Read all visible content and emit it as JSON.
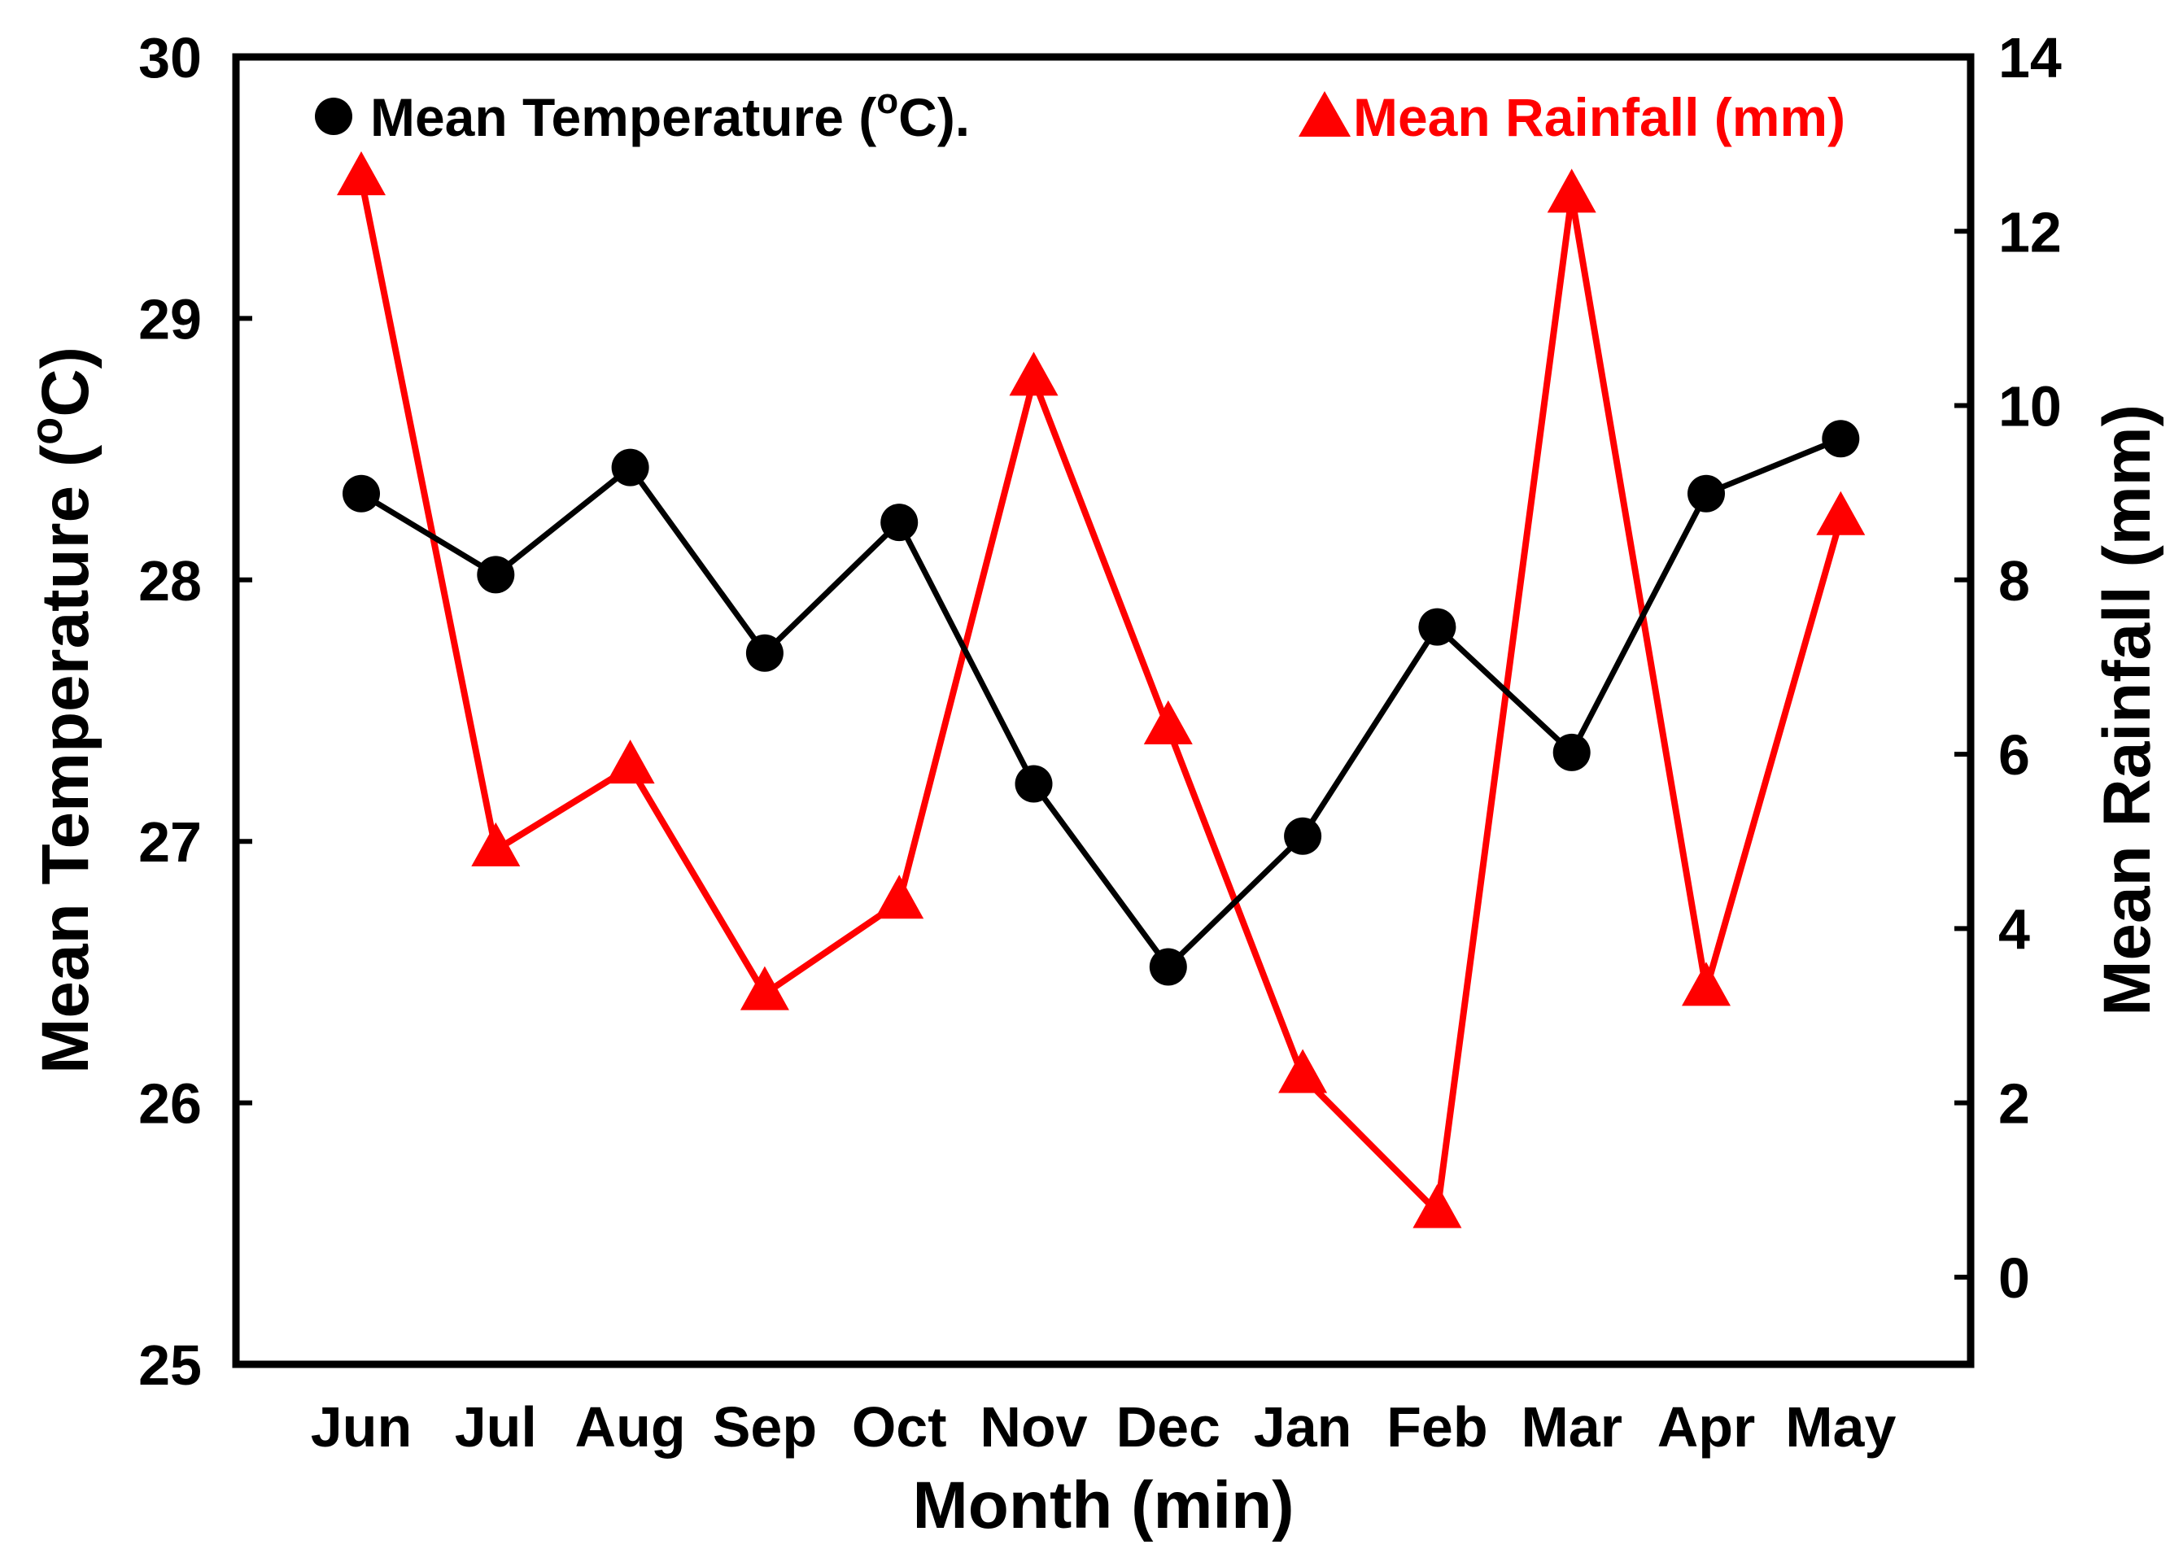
{
  "chart_data": {
    "type": "line",
    "title": "",
    "xlabel": "Month (min)",
    "ylabel": "Mean Temperature (°C)",
    "ylabel_right": "Mean Rainfall (mm)",
    "ylabel_parts": [
      "Mean Temperature (",
      "o",
      "C)"
    ],
    "categories": [
      "Jun",
      "Jul",
      "Aug",
      "Sep",
      "Oct",
      "Nov",
      "Dec",
      "Jan",
      "Feb",
      "Mar",
      "Apr",
      "May"
    ],
    "ylim": [
      25,
      30
    ],
    "ylim_right": [
      -1,
      14
    ],
    "yticks": [
      25,
      26,
      27,
      28,
      29,
      30
    ],
    "yticks_right": [
      0,
      2,
      4,
      6,
      8,
      10,
      12,
      14
    ],
    "series": [
      {
        "name": "Mean Temperature (°C).",
        "legend_parts": [
          "Mean Temperature (",
          "o",
          "C)."
        ],
        "axis": "left",
        "color": "#000000",
        "marker": "circle",
        "values": [
          28.33,
          28.02,
          28.43,
          27.72,
          28.22,
          27.22,
          26.52,
          27.02,
          27.82,
          27.34,
          28.33,
          28.54
        ]
      },
      {
        "name": "Mean Rainfall (mm)",
        "axis": "right",
        "color": "#ff0000",
        "marker": "triangle",
        "values": [
          12.6,
          4.9,
          5.85,
          3.25,
          4.3,
          10.3,
          6.3,
          2.3,
          0.75,
          12.4,
          3.3,
          8.7
        ]
      }
    ],
    "grid": false,
    "legend": "top"
  }
}
